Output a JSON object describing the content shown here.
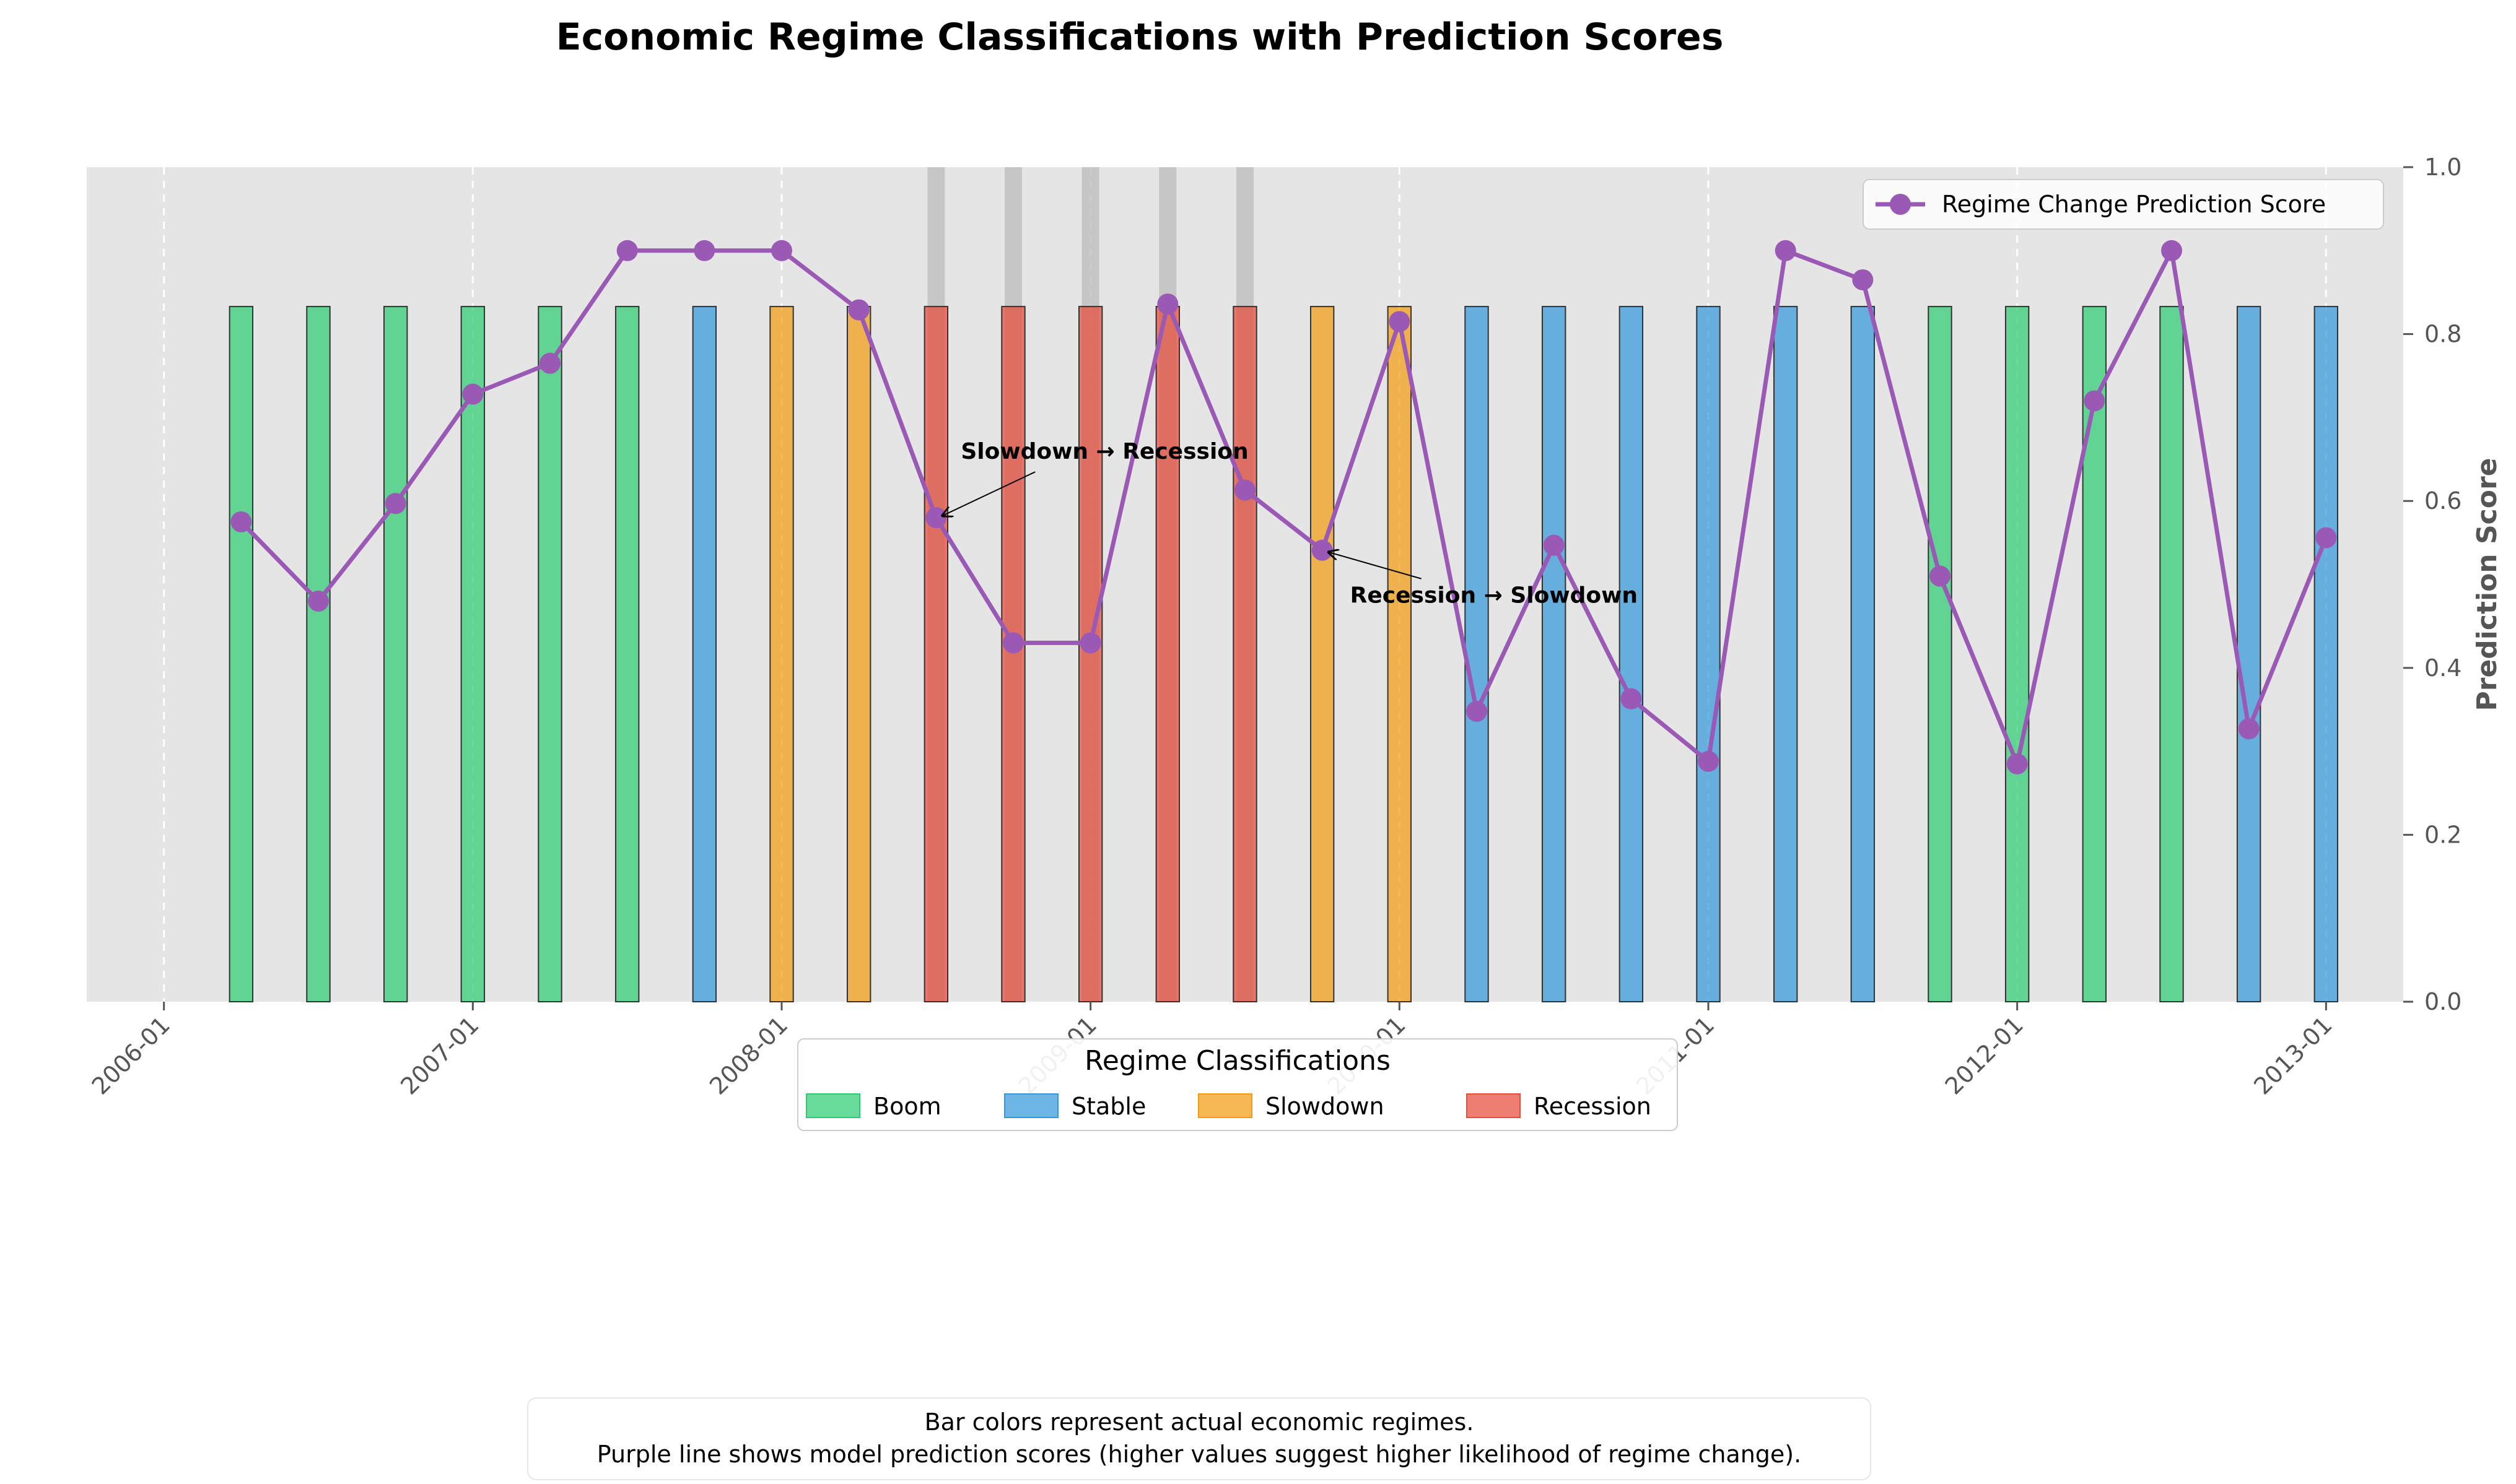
{
  "chart_data": {
    "type": "bar",
    "title": "Economic Regime Classifications with Prediction Scores",
    "ylabel": "Prediction Score",
    "ylim": [
      0,
      1.0
    ],
    "y_ticks": [
      "0.0",
      "0.2",
      "0.4",
      "0.6",
      "0.8",
      "1.0"
    ],
    "x_tick_labels": [
      "2006-01",
      "2007-01",
      "2008-01",
      "2009-01",
      "2010-01",
      "2011-01",
      "2012-01",
      "2013-01"
    ],
    "x_range": [
      "2005-10",
      "2013-04"
    ],
    "grid": "vertical dashed",
    "colors": {
      "Boom": "#2ecc71",
      "Stable": "#3498db",
      "Slowdown": "#f39c12",
      "Recession": "#e74c3c",
      "line": "#9b59b6",
      "background": "#e5e5e5",
      "highlight": "#bbbbbb"
    },
    "bar_height": 0.833,
    "periods": [
      {
        "date": "2006-04",
        "regime": "Boom",
        "score": 0.575
      },
      {
        "date": "2006-07",
        "regime": "Boom",
        "score": 0.48
      },
      {
        "date": "2006-10",
        "regime": "Boom",
        "score": 0.597
      },
      {
        "date": "2007-01",
        "regime": "Boom",
        "score": 0.728
      },
      {
        "date": "2007-04",
        "regime": "Boom",
        "score": 0.765
      },
      {
        "date": "2007-07",
        "regime": "Boom",
        "score": 0.9
      },
      {
        "date": "2007-10",
        "regime": "Stable",
        "score": 0.9
      },
      {
        "date": "2008-01",
        "regime": "Slowdown",
        "score": 0.9
      },
      {
        "date": "2008-04",
        "regime": "Slowdown",
        "score": 0.829
      },
      {
        "date": "2008-07",
        "regime": "Recession",
        "score": 0.58
      },
      {
        "date": "2008-10",
        "regime": "Recession",
        "score": 0.43
      },
      {
        "date": "2009-01",
        "regime": "Recession",
        "score": 0.43
      },
      {
        "date": "2009-04",
        "regime": "Recession",
        "score": 0.836
      },
      {
        "date": "2009-07",
        "regime": "Recession",
        "score": 0.613
      },
      {
        "date": "2009-10",
        "regime": "Slowdown",
        "score": 0.541
      },
      {
        "date": "2010-01",
        "regime": "Slowdown",
        "score": 0.815
      },
      {
        "date": "2010-04",
        "regime": "Stable",
        "score": 0.348
      },
      {
        "date": "2010-07",
        "regime": "Stable",
        "score": 0.547
      },
      {
        "date": "2010-10",
        "regime": "Stable",
        "score": 0.363
      },
      {
        "date": "2011-01",
        "regime": "Stable",
        "score": 0.288
      },
      {
        "date": "2011-04",
        "regime": "Stable",
        "score": 0.9
      },
      {
        "date": "2011-07",
        "regime": "Stable",
        "score": 0.865
      },
      {
        "date": "2011-10",
        "regime": "Boom",
        "score": 0.51
      },
      {
        "date": "2012-01",
        "regime": "Boom",
        "score": 0.285
      },
      {
        "date": "2012-04",
        "regime": "Boom",
        "score": 0.72
      },
      {
        "date": "2012-07",
        "regime": "Boom",
        "score": 0.9
      },
      {
        "date": "2012-10",
        "regime": "Stable",
        "score": 0.327
      },
      {
        "date": "2013-01",
        "regime": "Stable",
        "score": 0.556
      }
    ],
    "highlighted_periods": [
      "2008-07",
      "2008-10",
      "2009-01",
      "2009-04",
      "2009-07"
    ],
    "series": [
      {
        "name": "Regime Change Prediction Score",
        "type": "line"
      }
    ],
    "annotations": [
      {
        "text": "Slowdown → Recession",
        "date": "2008-07",
        "score": 0.58
      },
      {
        "text": "Recession → Slowdown",
        "date": "2009-10",
        "score": 0.541
      }
    ],
    "line_legend": {
      "placement": "top-right",
      "label": "Regime Change Prediction Score"
    },
    "regime_legend": {
      "placement": "bottom-center",
      "title": "Regime Classifications",
      "items": [
        "Boom",
        "Stable",
        "Slowdown",
        "Recession"
      ]
    },
    "footnote": [
      "Bar colors represent actual economic regimes.",
      "Purple line shows model prediction scores (higher values suggest higher likelihood of regime change)."
    ]
  }
}
